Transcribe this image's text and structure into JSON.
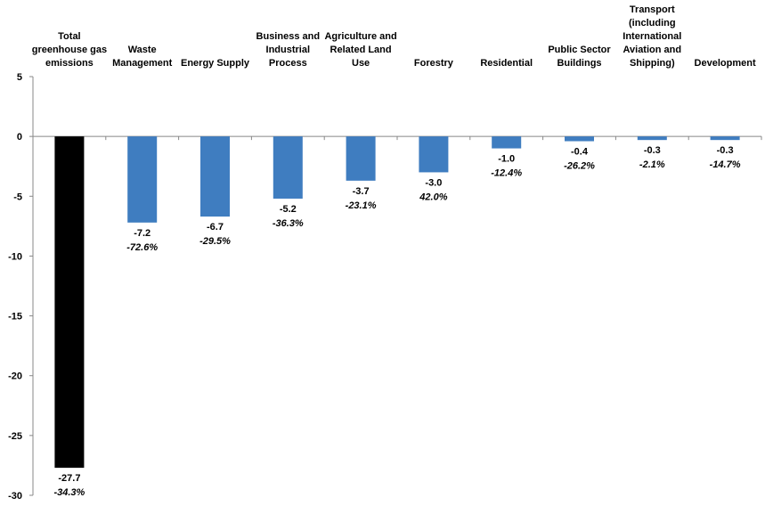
{
  "chart_data": {
    "type": "bar",
    "title": "",
    "xlabel": "",
    "ylabel": "",
    "ylim": [
      -30,
      5
    ],
    "yticks": [
      5,
      0,
      -5,
      -10,
      -15,
      -20,
      -25,
      -30
    ],
    "grid": false,
    "legend": "none",
    "categories": [
      "Total greenhouse gas emissions",
      "Waste Management",
      "Energy Supply",
      "Business and Industrial Process",
      "Agriculture and Related Land Use",
      "Forestry",
      "Residential",
      "Public Sector Buildings",
      "Transport (including International Aviation and Shipping)",
      "Development"
    ],
    "category_label_lines": [
      [
        "Total",
        "greenhouse gas",
        "emissions"
      ],
      [
        "Waste",
        "Management"
      ],
      [
        "Energy Supply"
      ],
      [
        "Business and",
        "Industrial",
        "Process"
      ],
      [
        "Agriculture and",
        "Related Land",
        "Use"
      ],
      [
        "Forestry"
      ],
      [
        "Residential"
      ],
      [
        "Public Sector",
        "Buildings"
      ],
      [
        "Transport",
        "(including",
        "International",
        "Aviation and",
        "Shipping)"
      ],
      [
        "Development"
      ]
    ],
    "values": [
      -27.7,
      -7.2,
      -6.7,
      -5.2,
      -3.7,
      -3.0,
      -1.0,
      -0.4,
      -0.3,
      -0.3
    ],
    "value_labels": [
      "-27.7",
      "-7.2",
      "-6.7",
      "-5.2",
      "-3.7",
      "-3.0",
      "-1.0",
      "-0.4",
      "-0.3",
      "-0.3"
    ],
    "percent_labels": [
      "-34.3%",
      "-72.6%",
      "-29.5%",
      "-36.3%",
      "-23.1%",
      "42.0%",
      "-12.4%",
      "-26.2%",
      "-2.1%",
      "-14.7%"
    ],
    "colors": {
      "highlight": "#000000",
      "bar": "#3f7dc0",
      "axis": "#888888"
    }
  }
}
